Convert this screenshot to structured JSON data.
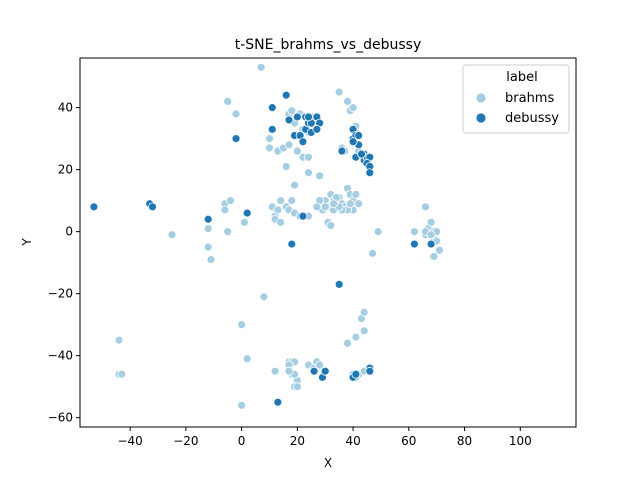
{
  "chart_data": {
    "type": "scatter",
    "title": "t-SNE_brahms_vs_debussy",
    "xlabel": "X",
    "ylabel": "Y",
    "xlim": [
      -58,
      120
    ],
    "ylim": [
      -63,
      56
    ],
    "xticks": [
      -40,
      -20,
      0,
      20,
      40,
      60,
      80,
      100
    ],
    "yticks": [
      -60,
      -40,
      -20,
      0,
      20,
      40
    ],
    "grid": false,
    "legend": {
      "title": "label",
      "position": "top-right"
    },
    "series": [
      {
        "name": "brahms",
        "color": "#a6cee3",
        "points": [
          [
            7,
            53
          ],
          [
            -5,
            42
          ],
          [
            -2,
            38
          ],
          [
            10,
            27
          ],
          [
            10,
            30
          ],
          [
            13,
            26
          ],
          [
            15,
            27
          ],
          [
            17,
            28
          ],
          [
            17,
            38
          ],
          [
            18,
            39
          ],
          [
            19,
            35
          ],
          [
            20,
            37
          ],
          [
            21,
            38
          ],
          [
            22,
            33
          ],
          [
            24,
            32
          ],
          [
            25,
            37
          ],
          [
            26,
            34
          ],
          [
            20,
            26
          ],
          [
            16,
            21
          ],
          [
            22,
            24
          ],
          [
            24,
            24
          ],
          [
            19,
            15
          ],
          [
            18,
            10
          ],
          [
            24,
            19
          ],
          [
            28,
            18
          ],
          [
            35,
            45
          ],
          [
            38,
            42
          ],
          [
            39,
            39
          ],
          [
            40,
            40
          ],
          [
            41,
            34
          ],
          [
            41,
            32
          ],
          [
            36,
            27
          ],
          [
            37,
            26
          ],
          [
            42,
            26
          ],
          [
            -6,
            9
          ],
          [
            -4,
            10
          ],
          [
            -6,
            7
          ],
          [
            1,
            3
          ],
          [
            -5,
            0
          ],
          [
            -12,
            1
          ],
          [
            -12,
            -5
          ],
          [
            -11,
            -9
          ],
          [
            -25,
            -1
          ],
          [
            11,
            8
          ],
          [
            12,
            5
          ],
          [
            13,
            7
          ],
          [
            14,
            10
          ],
          [
            16,
            8
          ],
          [
            17,
            7
          ],
          [
            19,
            6
          ],
          [
            21,
            5
          ],
          [
            24,
            5
          ],
          [
            28,
            9
          ],
          [
            29,
            7
          ],
          [
            30,
            10
          ],
          [
            31,
            8
          ],
          [
            32,
            12
          ],
          [
            33,
            10
          ],
          [
            33,
            7
          ],
          [
            35,
            11
          ],
          [
            36,
            9
          ],
          [
            37,
            8
          ],
          [
            38,
            14
          ],
          [
            39,
            12
          ],
          [
            40,
            10
          ],
          [
            40,
            7
          ],
          [
            41,
            12
          ],
          [
            42,
            9
          ],
          [
            38,
            7
          ],
          [
            36,
            7
          ],
          [
            34,
            11
          ],
          [
            31,
            3
          ],
          [
            32,
            2
          ],
          [
            30,
            8
          ],
          [
            28,
            10
          ],
          [
            27,
            8
          ],
          [
            35,
            8
          ],
          [
            39,
            9
          ],
          [
            33,
            9
          ],
          [
            12,
            4
          ],
          [
            14,
            3
          ],
          [
            49,
            0
          ],
          [
            47,
            -7
          ],
          [
            62,
            0
          ],
          [
            66,
            8
          ],
          [
            66,
            -1
          ],
          [
            67,
            1
          ],
          [
            68,
            3
          ],
          [
            69,
            0
          ],
          [
            69,
            -2
          ],
          [
            70,
            0
          ],
          [
            70,
            -3
          ],
          [
            71,
            -6
          ],
          [
            69,
            -8
          ],
          [
            66,
            0
          ],
          [
            68,
            -1
          ],
          [
            8,
            -21
          ],
          [
            0,
            -30
          ],
          [
            2,
            -41
          ],
          [
            -44,
            -35
          ],
          [
            -44,
            -46
          ],
          [
            -43,
            -46
          ],
          [
            12,
            -45
          ],
          [
            17,
            -42
          ],
          [
            18,
            -42
          ],
          [
            17,
            -44
          ],
          [
            18,
            -46
          ],
          [
            19,
            -42
          ],
          [
            20,
            -48
          ],
          [
            19,
            -50
          ],
          [
            20,
            -50
          ],
          [
            24,
            -43
          ],
          [
            26,
            -44
          ],
          [
            27,
            -42
          ],
          [
            28,
            -43
          ],
          [
            38,
            -36
          ],
          [
            41,
            -34
          ],
          [
            43,
            -28
          ],
          [
            44,
            -26
          ],
          [
            44,
            -32
          ],
          [
            40,
            -46
          ],
          [
            42,
            -46
          ],
          [
            44,
            -45
          ],
          [
            46,
            -45
          ],
          [
            0,
            -56
          ],
          [
            17,
            -43
          ],
          [
            19,
            -46
          ],
          [
            17,
            -45
          ],
          [
            41,
            -47
          ]
        ]
      },
      {
        "name": "debussy",
        "color": "#1f78b4",
        "points": [
          [
            -53,
            8
          ],
          [
            -33,
            9
          ],
          [
            -32,
            8
          ],
          [
            -12,
            4
          ],
          [
            2,
            6
          ],
          [
            -2,
            30
          ],
          [
            11,
            40
          ],
          [
            11,
            33
          ],
          [
            16,
            44
          ],
          [
            17,
            36
          ],
          [
            19,
            31
          ],
          [
            20,
            37
          ],
          [
            21,
            31
          ],
          [
            22,
            29
          ],
          [
            23,
            37
          ],
          [
            23,
            33
          ],
          [
            24,
            35
          ],
          [
            25,
            32
          ],
          [
            26,
            36
          ],
          [
            27,
            37
          ],
          [
            28,
            35
          ],
          [
            27,
            33
          ],
          [
            25,
            35
          ],
          [
            24,
            37
          ],
          [
            40,
            33
          ],
          [
            40,
            30
          ],
          [
            41,
            31
          ],
          [
            42,
            28
          ],
          [
            42,
            31
          ],
          [
            40,
            29
          ],
          [
            41,
            24
          ],
          [
            36,
            26
          ],
          [
            44,
            25
          ],
          [
            44,
            23
          ],
          [
            45,
            24
          ],
          [
            46,
            24
          ],
          [
            45,
            22
          ],
          [
            46,
            21
          ],
          [
            46,
            19
          ],
          [
            43,
            25
          ],
          [
            22,
            5
          ],
          [
            18,
            -4
          ],
          [
            35,
            -17
          ],
          [
            68,
            -4
          ],
          [
            62,
            -4
          ],
          [
            13,
            -55
          ],
          [
            26,
            -45
          ],
          [
            29,
            -47
          ],
          [
            30,
            -45
          ],
          [
            40,
            -47
          ],
          [
            41,
            -46
          ],
          [
            46,
            -44
          ],
          [
            46,
            -45
          ]
        ]
      }
    ]
  }
}
